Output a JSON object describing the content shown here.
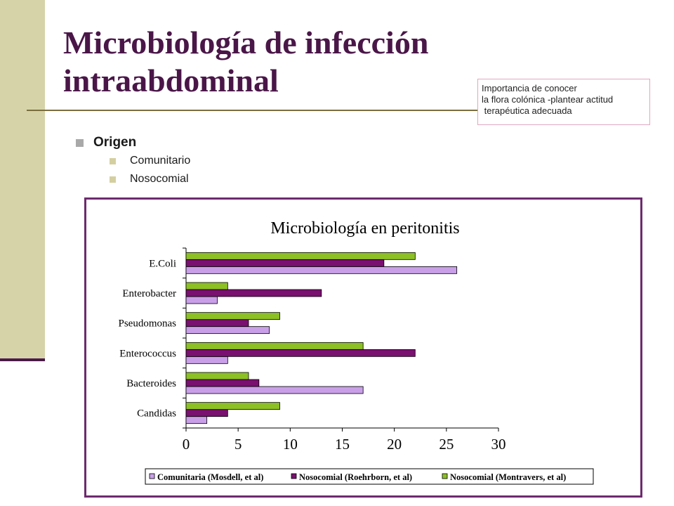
{
  "slide": {
    "title_line1": "Microbiología de infección",
    "title_line2": "intraabdominal",
    "note": {
      "line1": "Importancia de conocer",
      "line2": "la flora colónica -plantear actitud",
      "line3": " terapéutica adecuada"
    },
    "bullets": {
      "level1": "Origen",
      "level2": [
        "Comunitario",
        "Nosocomial"
      ]
    },
    "colors": {
      "title": "#4A1648",
      "left_band": "#D6D3A8",
      "frame": "#6E2A6E"
    }
  },
  "chart_data": {
    "type": "bar",
    "orientation": "horizontal",
    "title": "Microbiología en peritonitis",
    "categories": [
      "E.Coli",
      "Enterobacter",
      "Pseudomonas",
      "Enterococcus",
      "Bacteroides",
      "Candidas"
    ],
    "series": [
      {
        "name": "Comunitaria (Mosdell, et al)",
        "color": "#C9A0E8",
        "values": [
          26,
          3,
          8,
          4,
          17,
          2
        ]
      },
      {
        "name": "Nosocomial (Roehrborn, et al)",
        "color": "#7A1070",
        "values": [
          19,
          13,
          6,
          22,
          7,
          4
        ]
      },
      {
        "name": "Nosocomial (Montravers, et al)",
        "color": "#8CC024",
        "values": [
          22,
          4,
          9,
          17,
          6,
          9
        ]
      }
    ],
    "xlim": [
      0,
      30
    ],
    "xticks": [
      "0",
      "5",
      "10",
      "15",
      "20",
      "25",
      "30"
    ],
    "grid": false,
    "legend_position": "bottom"
  }
}
